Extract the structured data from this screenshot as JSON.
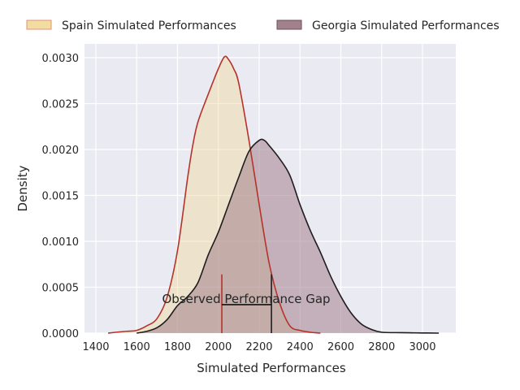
{
  "chart_data": {
    "type": "area",
    "title": "",
    "xlabel": "Simulated Performances",
    "ylabel": "Density",
    "xlim": [
      1350,
      3160
    ],
    "ylim": [
      0,
      0.00315
    ],
    "xticks": [
      1400,
      1600,
      1800,
      2000,
      2200,
      2400,
      2600,
      2800,
      3000
    ],
    "yticks": [
      "0.0000",
      "0.0005",
      "0.0010",
      "0.0015",
      "0.0020",
      "0.0025",
      "0.0030"
    ],
    "grid": true,
    "legend_placement": "top, outside",
    "series": [
      {
        "name": "Spain Simulated Performances",
        "fill": "#f2dca0",
        "line": "#b5332a",
        "x": [
          1460,
          1500,
          1550,
          1600,
          1650,
          1700,
          1750,
          1800,
          1850,
          1875,
          1900,
          1950,
          2000,
          2030,
          2050,
          2075,
          2100,
          2150,
          2200,
          2250,
          2300,
          2350,
          2400,
          2450,
          2500
        ],
        "y": [
          0,
          1e-05,
          2e-05,
          3e-05,
          8e-05,
          0.00016,
          0.0004,
          0.0009,
          0.0017,
          0.00205,
          0.0023,
          0.0026,
          0.00288,
          0.00301,
          0.00298,
          0.00288,
          0.00272,
          0.0021,
          0.0014,
          0.00075,
          0.00033,
          8e-05,
          3e-05,
          1e-05,
          0
        ]
      },
      {
        "name": "Georgia Simulated Performances",
        "fill": "#a2808c",
        "line": "#211c1e",
        "x": [
          1600,
          1650,
          1700,
          1750,
          1800,
          1850,
          1900,
          1950,
          2000,
          2050,
          2100,
          2150,
          2200,
          2225,
          2250,
          2300,
          2350,
          2400,
          2450,
          2500,
          2550,
          2600,
          2650,
          2700,
          2750,
          2800,
          2900,
          3000,
          3080
        ],
        "y": [
          0,
          2e-05,
          6e-05,
          0.00015,
          0.0003,
          0.0004,
          0.00055,
          0.00085,
          0.0011,
          0.0014,
          0.0017,
          0.00198,
          0.0021,
          0.0021,
          0.00204,
          0.0019,
          0.00172,
          0.0014,
          0.00112,
          0.00088,
          0.00062,
          0.0004,
          0.00022,
          0.0001,
          4e-05,
          1e-05,
          5e-06,
          2e-06,
          0
        ]
      }
    ],
    "annotation": {
      "text": "Observed Performance Gap",
      "spain_value": 2017,
      "georgia_value": 2260,
      "marker_top": 0.00064,
      "bracket_level": 0.00031
    }
  }
}
